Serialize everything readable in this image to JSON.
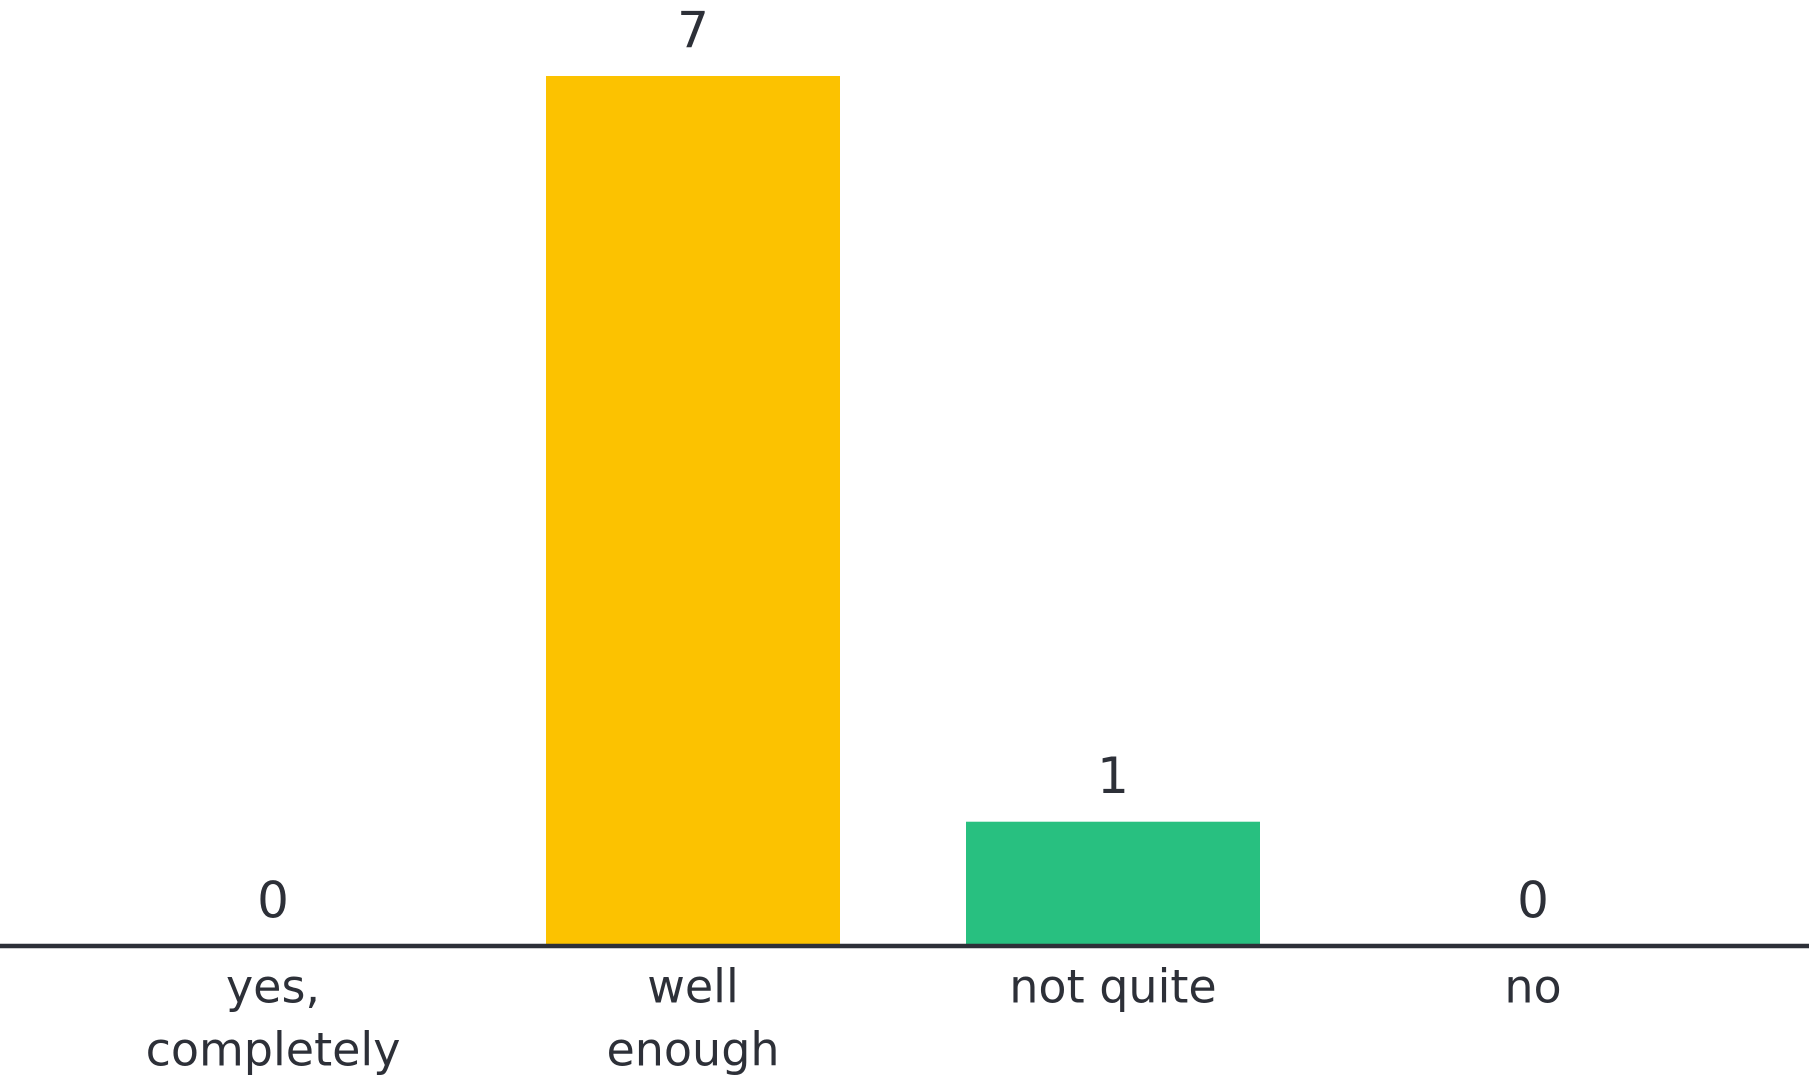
{
  "chart_data": {
    "type": "bar",
    "categories": [
      [
        "yes,",
        "completely"
      ],
      [
        "well",
        "enough"
      ],
      [
        "not quite"
      ],
      [
        "no"
      ]
    ],
    "values": [
      0,
      7,
      1,
      0
    ],
    "colors": [
      null,
      "#fcc200",
      "#28c080",
      null
    ],
    "ylim": [
      0,
      7
    ]
  }
}
